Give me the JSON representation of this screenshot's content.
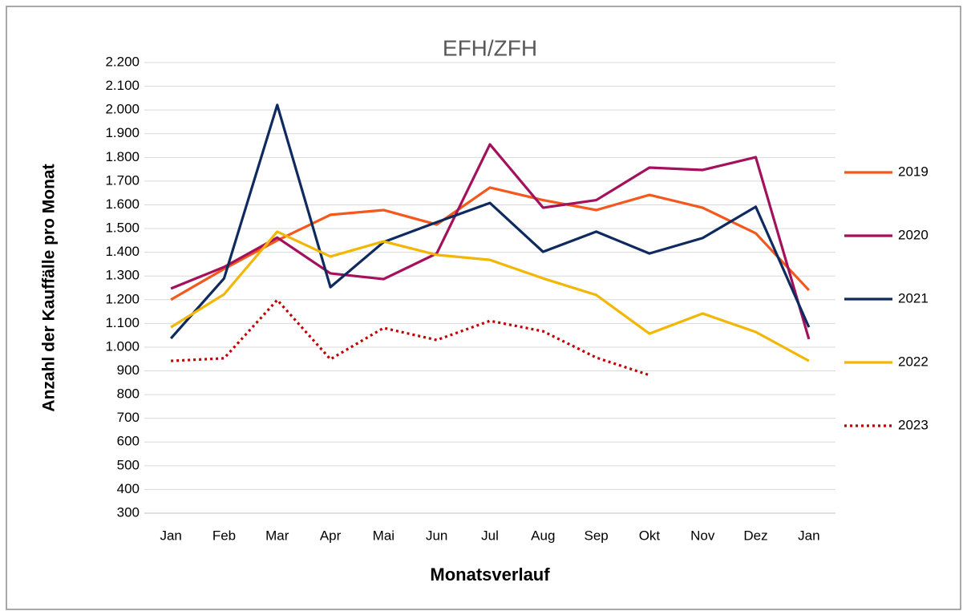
{
  "chart_data": {
    "type": "line",
    "title": "EFH/ZFH",
    "x_label": "Monatsverlauf",
    "y_label": "Anzahl der Kauffälle pro Monat",
    "categories": [
      "Jan",
      "Feb",
      "Mar",
      "Apr",
      "Mai",
      "Jun",
      "Jul",
      "Aug",
      "Sep",
      "Okt",
      "Nov",
      "Dez",
      "Jan"
    ],
    "series": [
      {
        "name": "2019",
        "color": "#f4581c",
        "line_style": "solid",
        "values": [
          1200,
          1330,
          1450,
          1558,
          1578,
          1517,
          1673,
          1620,
          1578,
          1642,
          1588,
          1480,
          1240
        ]
      },
      {
        "name": "2020",
        "color": "#a3115d",
        "line_style": "solid",
        "values": [
          1247,
          1338,
          1462,
          1311,
          1287,
          1395,
          1855,
          1588,
          1620,
          1757,
          1747,
          1801,
          1034
        ]
      },
      {
        "name": "2021",
        "color": "#0e2a5f",
        "line_style": "solid",
        "values": [
          1037,
          1290,
          2021,
          1253,
          1443,
          1527,
          1608,
          1402,
          1487,
          1395,
          1460,
          1592,
          1084
        ]
      },
      {
        "name": "2022",
        "color": "#f2b705",
        "line_style": "solid",
        "values": [
          1084,
          1223,
          1487,
          1382,
          1446,
          1389,
          1368,
          1290,
          1220,
          1057,
          1142,
          1064,
          942
        ]
      },
      {
        "name": "2023",
        "color": "#c00000",
        "line_style": "dotted",
        "values": [
          942,
          953,
          1199,
          949,
          1081,
          1030,
          1111,
          1067,
          956,
          882,
          null,
          null,
          null
        ]
      }
    ],
    "ylim": [
      300,
      2200
    ],
    "yticks": [
      300,
      400,
      500,
      600,
      700,
      800,
      900,
      {
        "value": 1000,
        "label": "1.000"
      },
      {
        "value": 1100,
        "label": "1.100"
      },
      {
        "value": 1200,
        "label": "1.200"
      },
      {
        "value": 1300,
        "label": "1.300"
      },
      {
        "value": 1400,
        "label": "1.400"
      },
      {
        "value": 1500,
        "label": "1.500"
      },
      {
        "value": 1600,
        "label": "1.600"
      },
      {
        "value": 1700,
        "label": "1.700"
      },
      {
        "value": 1800,
        "label": "1.800"
      },
      {
        "value": 1900,
        "label": "1.900"
      },
      {
        "value": 2000,
        "label": "2.000"
      },
      {
        "value": 2100,
        "label": "2.100"
      },
      {
        "value": 2200,
        "label": "2.200"
      }
    ],
    "grid": true,
    "legend": "right"
  }
}
